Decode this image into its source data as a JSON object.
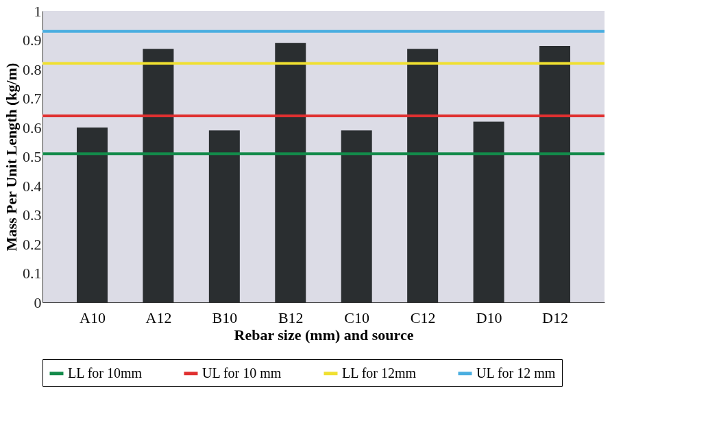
{
  "chart_data": {
    "type": "bar",
    "xlabel": "Rebar  size (mm) and source",
    "ylabel": "Mass  Per Unit Length (kg/m)",
    "categories": [
      "A10",
      "A12",
      "B10",
      "B12",
      "C10",
      "C12",
      "D10",
      "D12"
    ],
    "values": [
      0.6,
      0.87,
      0.59,
      0.89,
      0.59,
      0.87,
      0.62,
      0.88
    ],
    "color": "#2a2e30",
    "ylim": [
      0,
      1
    ],
    "yticks": [
      0,
      0.1,
      0.2,
      0.3,
      0.4,
      0.5,
      0.6,
      0.7,
      0.8,
      0.9,
      1
    ],
    "grid": false,
    "legend": "bottom",
    "ref_lines": [
      {
        "axis": "y",
        "value": 0.51,
        "label": "LL for 10mm",
        "color": "#138a4a"
      },
      {
        "axis": "y",
        "value": 0.64,
        "label": "UL for 10 mm",
        "color": "#e03030"
      },
      {
        "axis": "y",
        "value": 0.82,
        "label": "LL for 12mm",
        "color": "#f0e030"
      },
      {
        "axis": "y",
        "value": 0.93,
        "label": "UL for 12 mm",
        "color": "#4aaee0"
      }
    ]
  }
}
